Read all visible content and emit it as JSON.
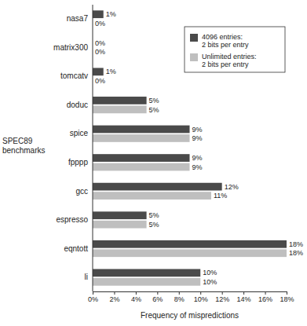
{
  "chart_data": {
    "type": "bar",
    "orientation": "horizontal",
    "categories": [
      "nasa7",
      "matrix300",
      "tomcatv",
      "doduc",
      "spice",
      "fpppp",
      "gcc",
      "espresso",
      "eqntott",
      "li"
    ],
    "series": [
      {
        "name": "4096 entries: 2 bits per entry",
        "color": "#4a4a4a",
        "values": [
          1,
          0,
          1,
          5,
          9,
          9,
          12,
          5,
          18,
          10
        ],
        "value_labels": [
          "1%",
          "0%",
          "1%",
          "5%",
          "9%",
          "9%",
          "12%",
          "5%",
          "18%",
          "10%"
        ]
      },
      {
        "name": "Unlimited entries: 2 bits per entry",
        "color": "#bfbfbf",
        "values": [
          0,
          0,
          0,
          5,
          9,
          9,
          11,
          5,
          18,
          10
        ],
        "value_labels": [
          "0%",
          "0%",
          "0%",
          "5%",
          "9%",
          "9%",
          "11%",
          "5%",
          "18%",
          "10%"
        ]
      }
    ],
    "xlim": [
      0,
      18
    ],
    "xticks": [
      {
        "value": 0,
        "label": "0%"
      },
      {
        "value": 2,
        "label": "2%"
      },
      {
        "value": 4,
        "label": "4%"
      },
      {
        "value": 6,
        "label": "6%"
      },
      {
        "value": 8,
        "label": "8%"
      },
      {
        "value": 10,
        "label": "10%"
      },
      {
        "value": 12,
        "label": "12%"
      },
      {
        "value": 14,
        "label": "14%"
      },
      {
        "value": 16,
        "label": "16%"
      },
      {
        "value": 18,
        "label": "18%"
      }
    ],
    "x_label": "Frequency of mispredictions",
    "y_label": "SPEC89 benchmarks",
    "data_labels": true,
    "legend": "upper right"
  }
}
